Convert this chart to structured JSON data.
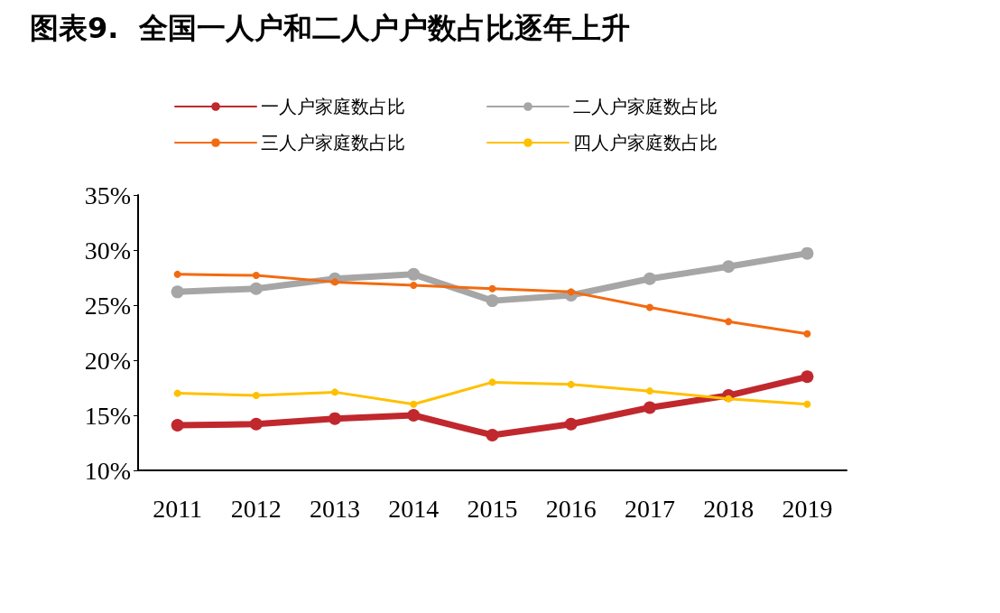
{
  "chart_data": {
    "type": "line",
    "title": "图表9.  全国一人户和二人户户数占比逐年上升",
    "categories": [
      "2011",
      "2012",
      "2013",
      "2014",
      "2015",
      "2016",
      "2017",
      "2018",
      "2019"
    ],
    "series": [
      {
        "name": "一人户家庭数占比",
        "color": "#c0282e",
        "values": [
          14.1,
          14.2,
          14.7,
          15.0,
          13.2,
          14.2,
          15.7,
          16.8,
          18.5
        ]
      },
      {
        "name": "二人户家庭数占比",
        "color": "#a6a6a6",
        "values": [
          26.2,
          26.5,
          27.4,
          27.8,
          25.4,
          25.9,
          27.4,
          28.5,
          29.7
        ]
      },
      {
        "name": "三人户家庭数占比",
        "color": "#f26b11",
        "values": [
          27.8,
          27.7,
          27.1,
          26.8,
          26.5,
          26.2,
          24.8,
          23.5,
          22.4
        ]
      },
      {
        "name": "四人户家庭数占比",
        "color": "#ffc000",
        "values": [
          17.0,
          16.8,
          17.1,
          16.0,
          18.0,
          17.8,
          17.2,
          16.5,
          16.0
        ]
      }
    ],
    "ylim": [
      10,
      35
    ],
    "yticks": [
      {
        "value": 10,
        "label": "10%"
      },
      {
        "value": 15,
        "label": "15%"
      },
      {
        "value": 20,
        "label": "20%"
      },
      {
        "value": 25,
        "label": "25%"
      },
      {
        "value": 30,
        "label": "30%"
      },
      {
        "value": 35,
        "label": "35%"
      }
    ],
    "legend": "top",
    "marker": "circle",
    "line_style": "solid",
    "grid": false
  }
}
